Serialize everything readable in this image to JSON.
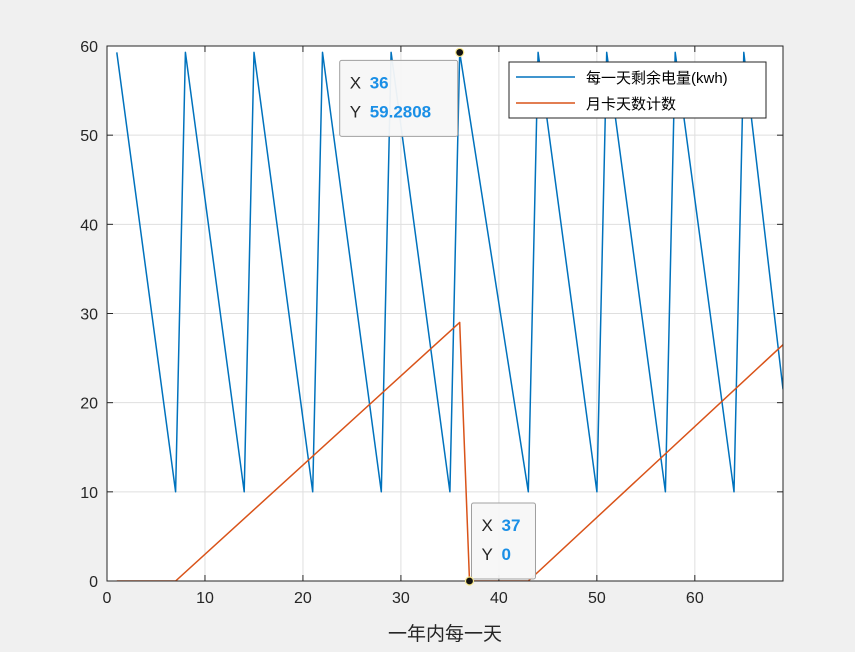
{
  "window": {
    "background": "#f0f0f0"
  },
  "chart_data": {
    "type": "line",
    "title": "",
    "xlabel": "一年内每一天",
    "ylabel": "",
    "xlim": [
      0,
      69
    ],
    "ylim": [
      0,
      60
    ],
    "xticks": [
      0,
      10,
      20,
      30,
      40,
      50,
      60
    ],
    "yticks": [
      0,
      10,
      20,
      30,
      40,
      50,
      60
    ],
    "grid": true,
    "legend_position": "top-right",
    "series": [
      {
        "name": "每一天剩余电量(kwh)",
        "color": "#0072bd",
        "x": [
          1,
          7,
          8,
          14,
          15,
          21,
          22,
          28,
          29,
          35,
          36,
          43,
          44,
          50,
          51,
          57,
          58,
          64,
          65,
          69
        ],
        "y": [
          59.28,
          10,
          59.28,
          10,
          59.28,
          10,
          59.28,
          10,
          59.28,
          10,
          59.2808,
          10,
          59.28,
          10,
          59.28,
          10,
          59.28,
          10,
          59.28,
          21.5
        ]
      },
      {
        "name": "月卡天数计数",
        "color": "#d95319",
        "x": [
          1,
          7,
          36,
          37,
          43,
          69
        ],
        "y": [
          0,
          0,
          29,
          0,
          0,
          26.5
        ]
      }
    ],
    "datatips": [
      {
        "x_label": "X",
        "x_value": "36",
        "y_label": "Y",
        "y_value": "59.2808",
        "x": 36,
        "y": 59.2808
      },
      {
        "x_label": "X",
        "x_value": "37",
        "y_label": "Y",
        "y_value": "0",
        "x": 37,
        "y": 0
      }
    ]
  }
}
